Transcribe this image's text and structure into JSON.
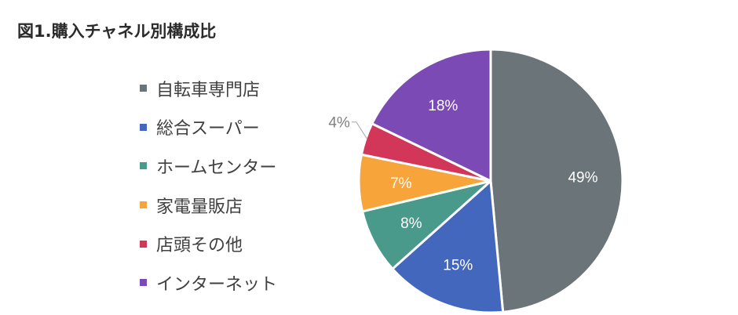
{
  "title": "図1.購入チャネル別構成比",
  "chart_data": {
    "type": "pie",
    "title": "図1.購入チャネル別構成比",
    "start": "12 o'clock",
    "direction": "clockwise",
    "legend_position": "left",
    "slices": [
      {
        "label": "自転車専門店",
        "value": 49,
        "display": "49%",
        "color": "#6b7479"
      },
      {
        "label": "総合スーパー",
        "value": 15,
        "display": "15%",
        "color": "#4467be"
      },
      {
        "label": "ホームセンター",
        "value": 8,
        "display": "8%",
        "color": "#4a9a8b"
      },
      {
        "label": "家電量販店",
        "value": 7,
        "display": "7%",
        "color": "#f7a43a"
      },
      {
        "label": "店頭その他",
        "value": 4,
        "display": "4%",
        "color": "#d2375a"
      },
      {
        "label": "インターネット",
        "value": 18,
        "display": "18%",
        "color": "#7c4ab4"
      }
    ]
  }
}
